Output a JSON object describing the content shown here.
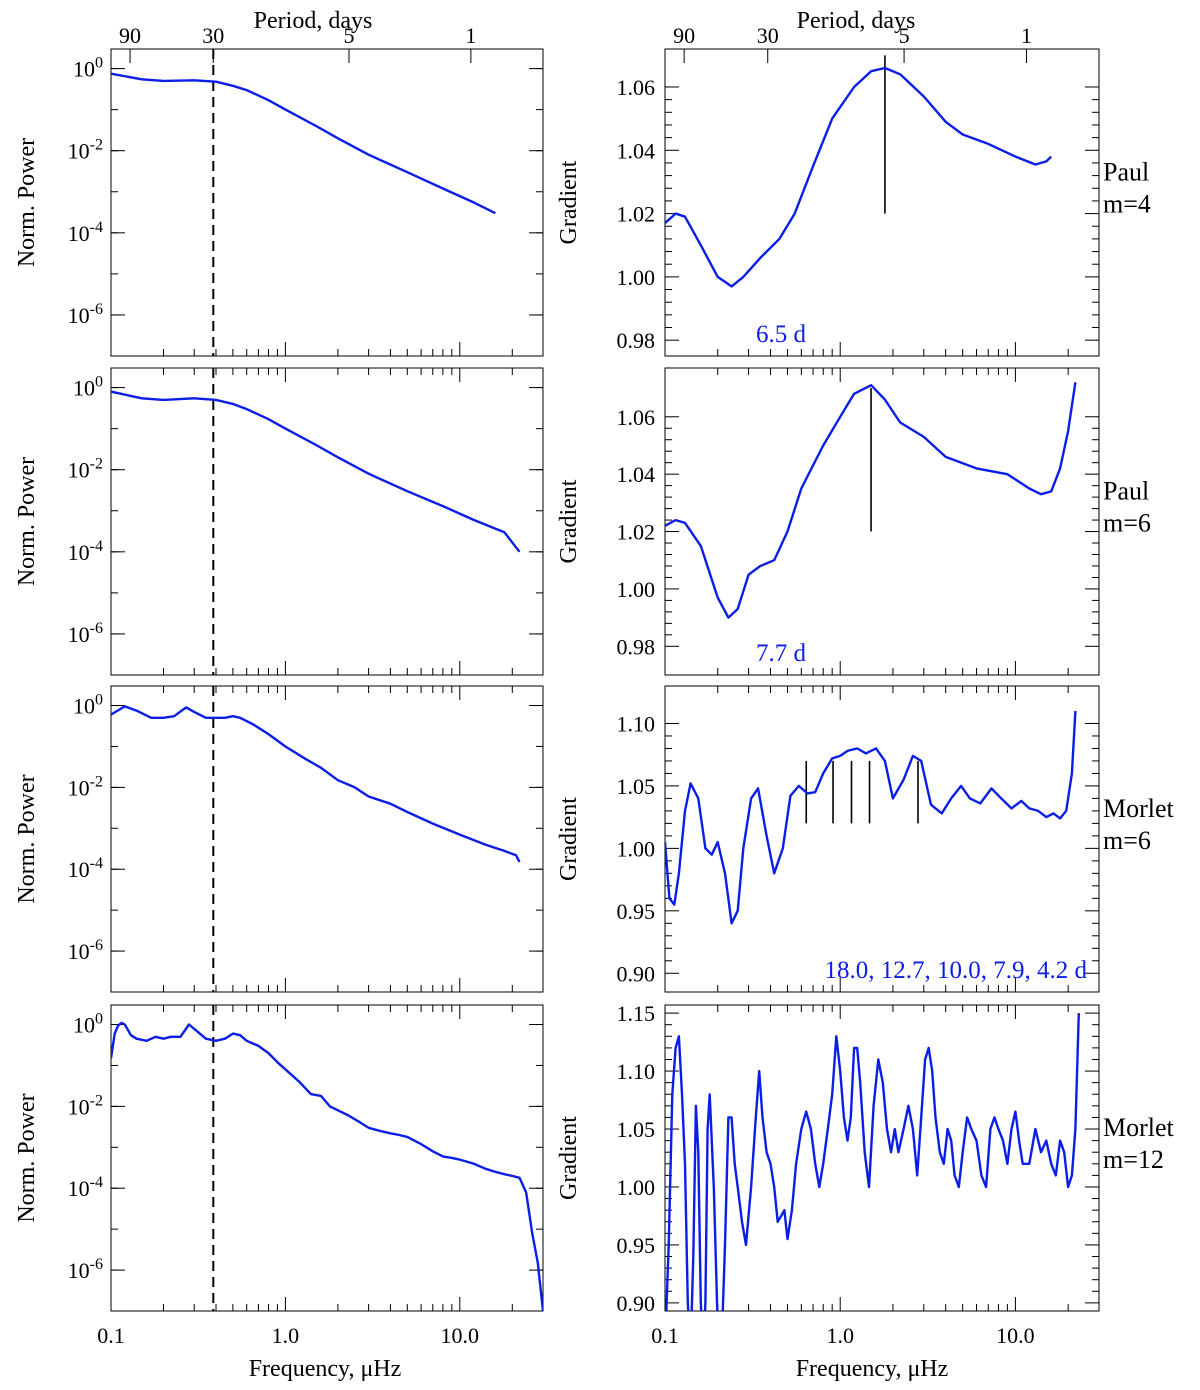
{
  "colors": {
    "curve": "#0a1ee6",
    "mark": "#000000",
    "note": "#0a1ee6"
  },
  "chart_data": {
    "type": "line",
    "x_scale": "log",
    "x_range": [
      0.1,
      30
    ],
    "top_axis": {
      "title": "Period, days",
      "tick_labels": [
        "90",
        "30",
        "5",
        "1"
      ],
      "tick_periods_days": [
        90,
        30,
        5,
        1
      ]
    },
    "bottom_axis": {
      "title": "Frequency, μHz",
      "tick_labels": [
        "0.1",
        "1.0",
        "10.0"
      ],
      "ticks": [
        0.1,
        1,
        10
      ]
    },
    "left_panels": {
      "ylabel": "Norm. Power",
      "y_scale": "log",
      "ylim": [
        1e-07,
        3
      ],
      "y_ticks": [
        {
          "base": "10",
          "exp": "0",
          "value": 1
        },
        {
          "base": "10",
          "exp": "-2",
          "value": 0.01
        },
        {
          "base": "10",
          "exp": "-4",
          "value": 0.0001
        },
        {
          "base": "10",
          "exp": "-6",
          "value": 1e-06
        }
      ],
      "reference_line_x": 0.386
    },
    "right_panels_ylabel": "Gradient",
    "rows": [
      {
        "side_label": [
          "Paul",
          "m=4"
        ],
        "power": {
          "x": [
            0.1,
            0.15,
            0.2,
            0.3,
            0.4,
            0.5,
            0.6,
            0.8,
            1.0,
            1.5,
            2.0,
            3.0,
            5.0,
            8.0,
            12.0,
            16.0
          ],
          "y": [
            0.75,
            0.55,
            0.5,
            0.52,
            0.48,
            0.38,
            0.3,
            0.17,
            0.1,
            0.04,
            0.02,
            0.008,
            0.003,
            0.0012,
            0.00055,
            0.0003
          ]
        },
        "gradient": {
          "ylim": [
            0.975,
            1.072
          ],
          "y_ticks": [
            "1.06",
            "1.04",
            "1.02",
            "1.00",
            "0.98"
          ],
          "y_tick_values": [
            1.06,
            1.04,
            1.02,
            1.0,
            0.98
          ],
          "x": [
            0.1,
            0.115,
            0.13,
            0.16,
            0.2,
            0.24,
            0.28,
            0.35,
            0.45,
            0.55,
            0.7,
            0.9,
            1.2,
            1.5,
            1.8,
            2.2,
            3.0,
            4.0,
            5.0,
            7.0,
            10.0,
            13.0,
            15.0,
            16.0
          ],
          "y": [
            1.017,
            1.02,
            1.019,
            1.01,
            1.0,
            0.997,
            1.0,
            1.006,
            1.012,
            1.02,
            1.035,
            1.05,
            1.06,
            1.065,
            1.066,
            1.064,
            1.057,
            1.049,
            1.045,
            1.042,
            1.038,
            1.0355,
            1.0365,
            1.038
          ],
          "markers": [
            {
              "x": 1.8,
              "y1": 1.07,
              "y2": 1.02
            }
          ],
          "annotation": "6.5 d"
        }
      },
      {
        "side_label": [
          "Paul",
          "m=6"
        ],
        "power": {
          "x": [
            0.1,
            0.15,
            0.2,
            0.3,
            0.4,
            0.5,
            0.6,
            0.8,
            1.0,
            1.5,
            2.0,
            3.0,
            5.0,
            8.0,
            12.0,
            18.0,
            22.0
          ],
          "y": [
            0.8,
            0.55,
            0.5,
            0.55,
            0.5,
            0.4,
            0.3,
            0.17,
            0.1,
            0.04,
            0.02,
            0.008,
            0.003,
            0.0013,
            0.0006,
            0.0003,
            0.0001
          ]
        },
        "gradient": {
          "ylim": [
            0.97,
            1.077
          ],
          "y_ticks": [
            "1.06",
            "1.04",
            "1.02",
            "1.00",
            "0.98"
          ],
          "y_tick_values": [
            1.06,
            1.04,
            1.02,
            1.0,
            0.98
          ],
          "x": [
            0.1,
            0.115,
            0.13,
            0.16,
            0.2,
            0.23,
            0.26,
            0.3,
            0.35,
            0.42,
            0.5,
            0.6,
            0.8,
            1.0,
            1.2,
            1.5,
            1.8,
            2.2,
            3.0,
            4.0,
            6.0,
            9.0,
            12.0,
            14.0,
            16.0,
            18.0,
            20.0,
            22.0
          ],
          "y": [
            1.022,
            1.024,
            1.023,
            1.015,
            0.997,
            0.99,
            0.993,
            1.005,
            1.008,
            1.01,
            1.02,
            1.035,
            1.05,
            1.06,
            1.068,
            1.071,
            1.066,
            1.058,
            1.053,
            1.046,
            1.042,
            1.04,
            1.035,
            1.033,
            1.034,
            1.042,
            1.055,
            1.072
          ],
          "markers": [
            {
              "x": 1.5,
              "y1": 1.07,
              "y2": 1.02
            }
          ],
          "annotation": "7.7 d"
        }
      },
      {
        "side_label": [
          "Morlet",
          "m=6"
        ],
        "power": {
          "x": [
            0.1,
            0.12,
            0.14,
            0.17,
            0.2,
            0.23,
            0.27,
            0.3,
            0.35,
            0.4,
            0.45,
            0.5,
            0.55,
            0.65,
            0.8,
            1.0,
            1.3,
            1.6,
            2.0,
            2.5,
            3.0,
            4.0,
            5.0,
            7.0,
            10.0,
            14.0,
            18.0,
            21.0,
            22.0
          ],
          "y": [
            0.6,
            0.95,
            0.75,
            0.5,
            0.5,
            0.55,
            0.9,
            0.7,
            0.5,
            0.5,
            0.5,
            0.55,
            0.5,
            0.35,
            0.2,
            0.1,
            0.05,
            0.03,
            0.015,
            0.01,
            0.006,
            0.004,
            0.0025,
            0.0013,
            0.0007,
            0.0004,
            0.00028,
            0.00022,
            0.00015
          ]
        },
        "gradient": {
          "ylim": [
            0.885,
            1.13
          ],
          "y_ticks": [
            "1.10",
            "1.05",
            "1.00",
            "0.95",
            "0.90"
          ],
          "y_tick_values": [
            1.1,
            1.05,
            1.0,
            0.95,
            0.9
          ],
          "x": [
            0.1,
            0.106,
            0.113,
            0.12,
            0.13,
            0.14,
            0.155,
            0.17,
            0.185,
            0.2,
            0.22,
            0.24,
            0.26,
            0.28,
            0.31,
            0.34,
            0.38,
            0.42,
            0.47,
            0.52,
            0.58,
            0.65,
            0.72,
            0.8,
            0.9,
            1.0,
            1.1,
            1.25,
            1.4,
            1.6,
            1.8,
            2.0,
            2.3,
            2.6,
            2.9,
            3.3,
            3.8,
            4.3,
            4.9,
            5.5,
            6.3,
            7.3,
            8.3,
            9.5,
            10.8,
            12.0,
            13.5,
            15.0,
            16.5,
            18.0,
            19.5,
            21.0,
            22.0
          ],
          "y": [
            1.005,
            0.96,
            0.955,
            0.98,
            1.03,
            1.052,
            1.04,
            1.0,
            0.995,
            1.005,
            0.98,
            0.94,
            0.95,
            1.0,
            1.04,
            1.048,
            1.01,
            0.98,
            1.0,
            1.042,
            1.05,
            1.044,
            1.045,
            1.06,
            1.072,
            1.074,
            1.078,
            1.08,
            1.076,
            1.08,
            1.07,
            1.04,
            1.055,
            1.074,
            1.07,
            1.035,
            1.028,
            1.04,
            1.05,
            1.04,
            1.036,
            1.048,
            1.04,
            1.032,
            1.038,
            1.032,
            1.03,
            1.025,
            1.028,
            1.024,
            1.03,
            1.06,
            1.11
          ],
          "markers": [
            {
              "x": 0.64,
              "y1": 1.07,
              "y2": 1.02
            },
            {
              "x": 0.91,
              "y1": 1.07,
              "y2": 1.02
            },
            {
              "x": 1.16,
              "y1": 1.07,
              "y2": 1.02
            },
            {
              "x": 1.47,
              "y1": 1.07,
              "y2": 1.02
            },
            {
              "x": 2.78,
              "y1": 1.07,
              "y2": 1.02
            }
          ],
          "annotation": "18.0, 12.7, 10.0,  7.9,  4.2 d"
        }
      },
      {
        "side_label": [
          "Morlet",
          "m=12"
        ],
        "power": {
          "x": [
            0.1,
            0.105,
            0.11,
            0.115,
            0.12,
            0.13,
            0.14,
            0.16,
            0.18,
            0.2,
            0.22,
            0.25,
            0.28,
            0.31,
            0.35,
            0.4,
            0.45,
            0.5,
            0.55,
            0.6,
            0.7,
            0.8,
            0.9,
            1.0,
            1.2,
            1.4,
            1.6,
            1.8,
            2.0,
            2.3,
            2.7,
            3.0,
            3.5,
            4.0,
            4.5,
            5.0,
            6.0,
            7.0,
            8.0,
            9.0,
            10.0,
            12.0,
            14.0,
            16.0,
            18.0,
            20.0,
            22.0,
            24.0,
            26.0,
            28.0,
            30.0
          ],
          "y": [
            0.15,
            0.6,
            0.95,
            1.1,
            1.0,
            0.55,
            0.45,
            0.4,
            0.5,
            0.45,
            0.5,
            0.5,
            1.0,
            0.7,
            0.45,
            0.4,
            0.45,
            0.6,
            0.55,
            0.4,
            0.3,
            0.2,
            0.12,
            0.08,
            0.04,
            0.02,
            0.018,
            0.01,
            0.008,
            0.006,
            0.004,
            0.003,
            0.0025,
            0.0022,
            0.002,
            0.0018,
            0.0012,
            0.0008,
            0.0006,
            0.00055,
            0.0005,
            0.0004,
            0.0003,
            0.00025,
            0.00022,
            0.0002,
            0.00018,
            8e-05,
            8e-06,
            1.5e-06,
            1e-07
          ]
        },
        "gradient": {
          "ylim": [
            0.893,
            1.157
          ],
          "y_ticks": [
            "1.15",
            "1.10",
            "1.05",
            "1.00",
            "0.95",
            "0.90"
          ],
          "y_tick_values": [
            1.15,
            1.1,
            1.05,
            1.0,
            0.95,
            0.9
          ],
          "x": [
            0.1,
            0.105,
            0.11,
            0.115,
            0.12,
            0.125,
            0.13,
            0.135,
            0.14,
            0.145,
            0.15,
            0.155,
            0.16,
            0.165,
            0.17,
            0.175,
            0.18,
            0.19,
            0.2,
            0.21,
            0.22,
            0.23,
            0.24,
            0.25,
            0.26,
            0.275,
            0.29,
            0.31,
            0.33,
            0.345,
            0.36,
            0.38,
            0.4,
            0.42,
            0.44,
            0.46,
            0.48,
            0.5,
            0.53,
            0.56,
            0.6,
            0.64,
            0.68,
            0.72,
            0.76,
            0.8,
            0.85,
            0.9,
            0.95,
            1.0,
            1.05,
            1.1,
            1.15,
            1.2,
            1.25,
            1.3,
            1.38,
            1.46,
            1.55,
            1.65,
            1.75,
            1.85,
            1.95,
            2.05,
            2.15,
            2.3,
            2.45,
            2.6,
            2.75,
            2.9,
            3.05,
            3.2,
            3.35,
            3.5,
            3.7,
            3.9,
            4.1,
            4.3,
            4.5,
            4.75,
            5.0,
            5.3,
            5.6,
            6.0,
            6.4,
            6.8,
            7.2,
            7.6,
            8.0,
            8.5,
            9.0,
            9.5,
            10.0,
            10.5,
            11.0,
            12.0,
            13.0,
            14.0,
            15.0,
            16.0,
            17.0,
            18.0,
            19.0,
            20.0,
            21.0,
            22.0,
            23.0
          ],
          "y": [
            0.86,
            0.95,
            1.08,
            1.12,
            1.13,
            1.08,
            1.02,
            0.9,
            0.86,
            0.94,
            1.07,
            1.03,
            0.9,
            0.86,
            0.9,
            1.05,
            1.08,
            1.0,
            0.88,
            0.86,
            0.95,
            1.06,
            1.06,
            1.02,
            1.0,
            0.97,
            0.95,
            1.0,
            1.06,
            1.1,
            1.06,
            1.03,
            1.02,
            1.0,
            0.97,
            0.975,
            0.98,
            0.955,
            0.98,
            1.02,
            1.05,
            1.065,
            1.05,
            1.02,
            1.0,
            1.02,
            1.05,
            1.08,
            1.13,
            1.1,
            1.06,
            1.04,
            1.06,
            1.12,
            1.12,
            1.09,
            1.03,
            1.0,
            1.07,
            1.11,
            1.09,
            1.05,
            1.03,
            1.05,
            1.03,
            1.05,
            1.07,
            1.05,
            1.01,
            1.06,
            1.11,
            1.12,
            1.1,
            1.06,
            1.03,
            1.02,
            1.05,
            1.04,
            1.01,
            1.0,
            1.03,
            1.06,
            1.05,
            1.04,
            1.01,
            1.0,
            1.05,
            1.06,
            1.05,
            1.04,
            1.02,
            1.05,
            1.065,
            1.04,
            1.02,
            1.02,
            1.05,
            1.03,
            1.04,
            1.02,
            1.01,
            1.04,
            1.03,
            1.0,
            1.01,
            1.05,
            1.15
          ],
          "markers": [],
          "annotation": ""
        }
      }
    ]
  }
}
